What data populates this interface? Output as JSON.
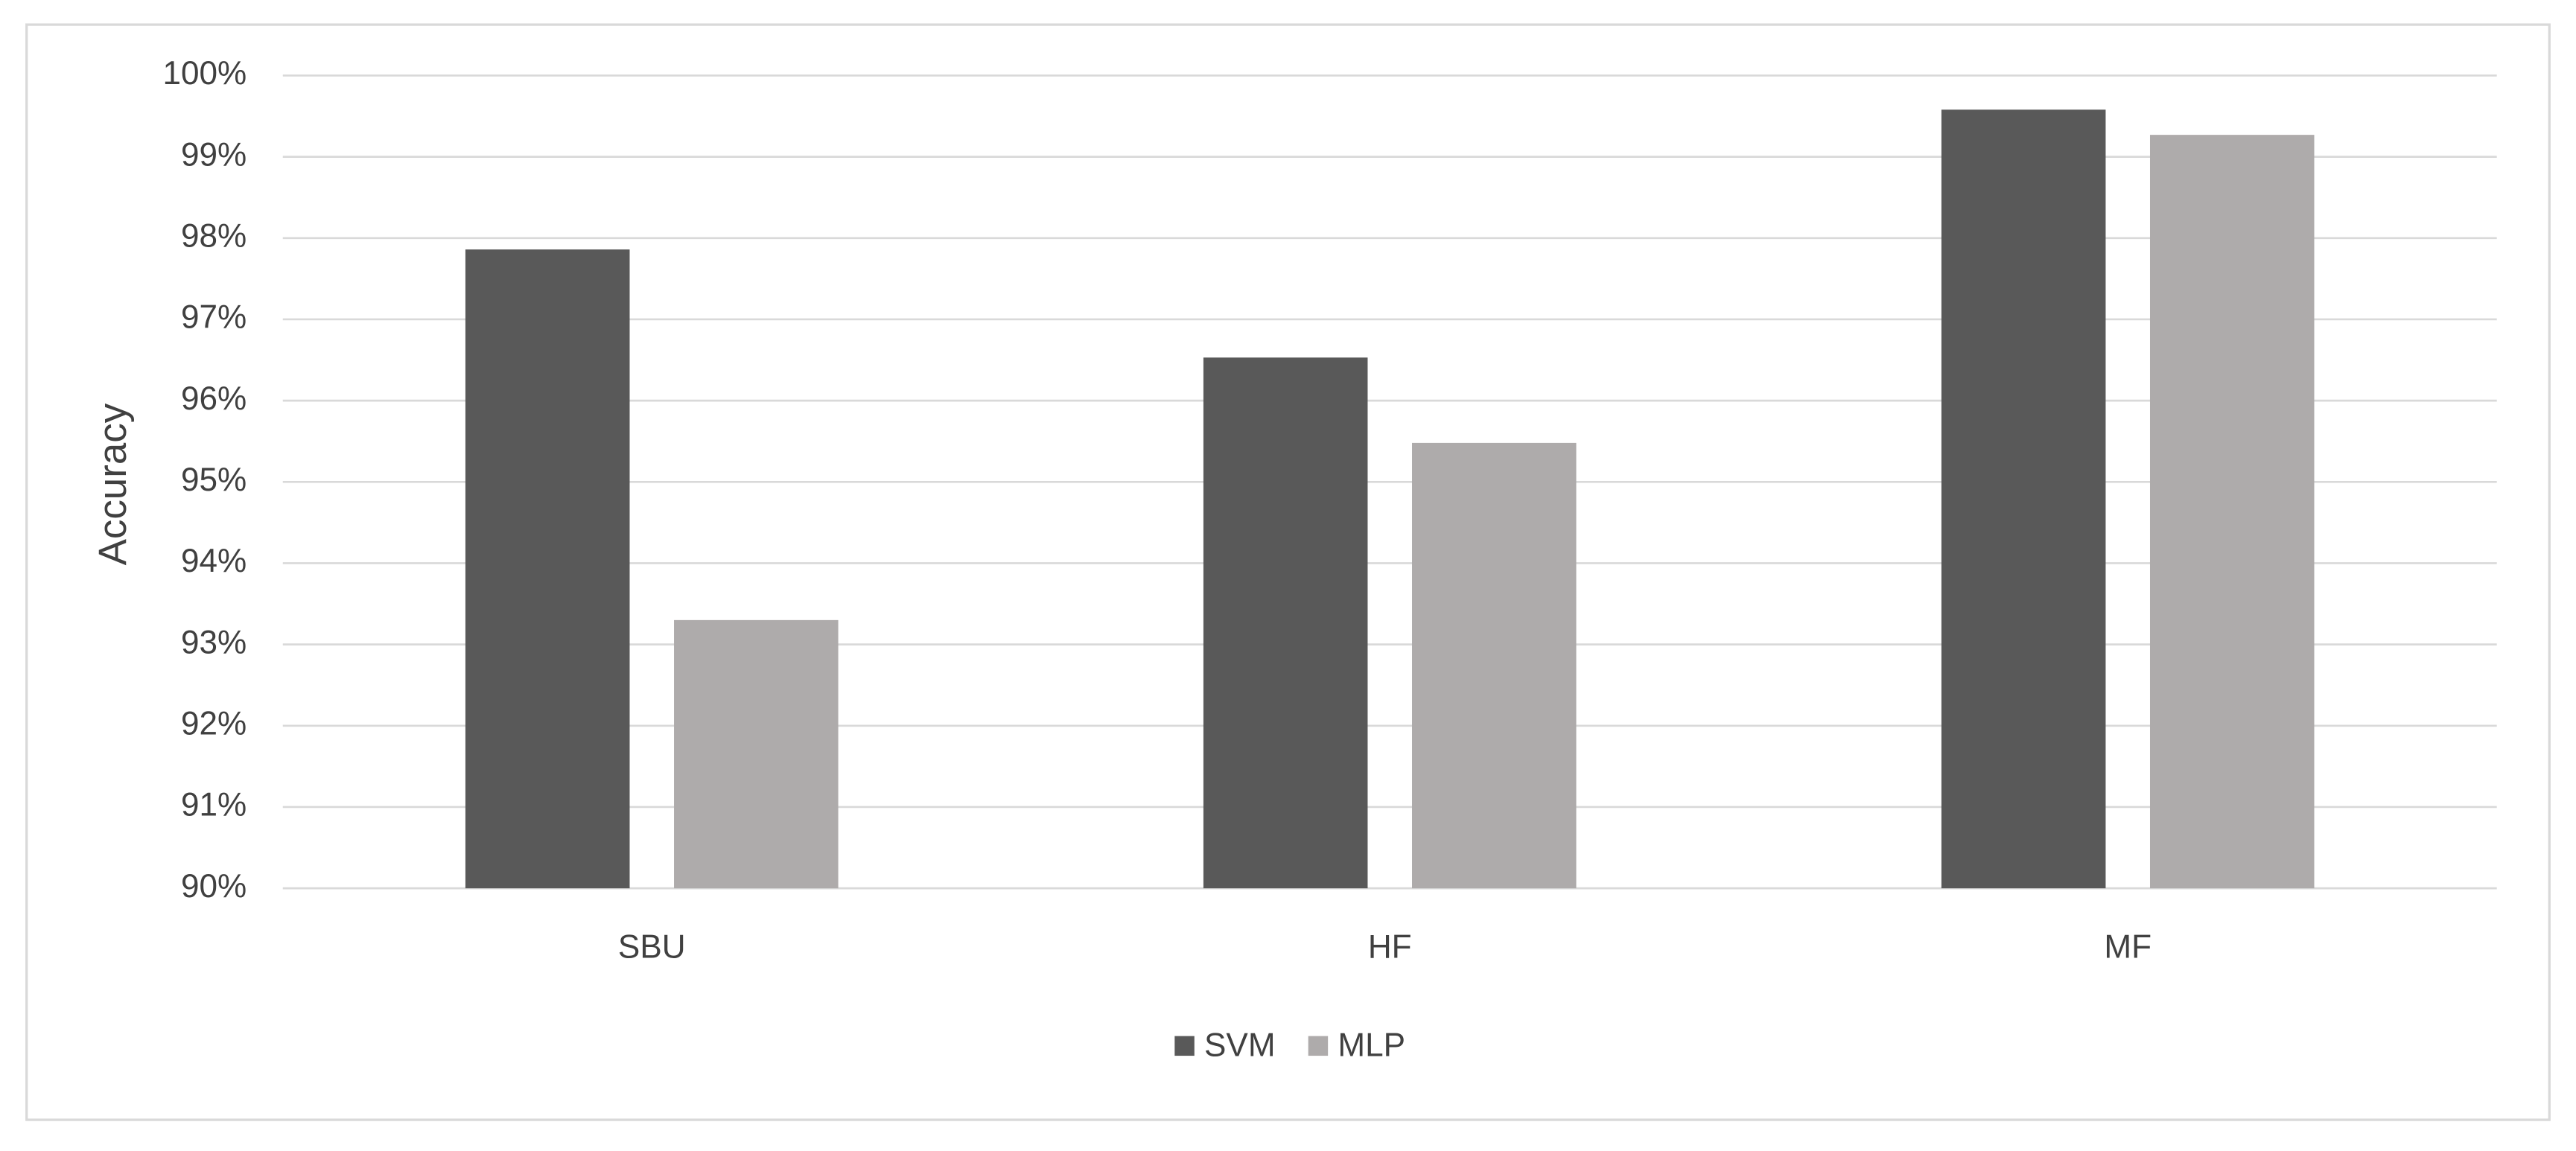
{
  "chart_data": {
    "type": "bar",
    "y_label": "Accuracy",
    "categories": [
      "SBU",
      "HF",
      "MF"
    ],
    "series": [
      {
        "name": "SVM",
        "color": "#595959",
        "values": [
          97.86,
          96.53,
          99.58
        ]
      },
      {
        "name": "MLP",
        "color": "#aeabab",
        "values": [
          93.3,
          95.48,
          99.27
        ]
      }
    ],
    "ylim": [
      90,
      100
    ],
    "yticks": [
      {
        "value": 90,
        "label": "90%"
      },
      {
        "value": 91,
        "label": "91%"
      },
      {
        "value": 92,
        "label": "92%"
      },
      {
        "value": 93,
        "label": "93%"
      },
      {
        "value": 94,
        "label": "94%"
      },
      {
        "value": 95,
        "label": "95%"
      },
      {
        "value": 96,
        "label": "96%"
      },
      {
        "value": 97,
        "label": "97%"
      },
      {
        "value": 98,
        "label": "98%"
      },
      {
        "value": 99,
        "label": "99%"
      },
      {
        "value": 100,
        "label": "100%"
      }
    ],
    "grid": true,
    "legend": "bottom"
  }
}
